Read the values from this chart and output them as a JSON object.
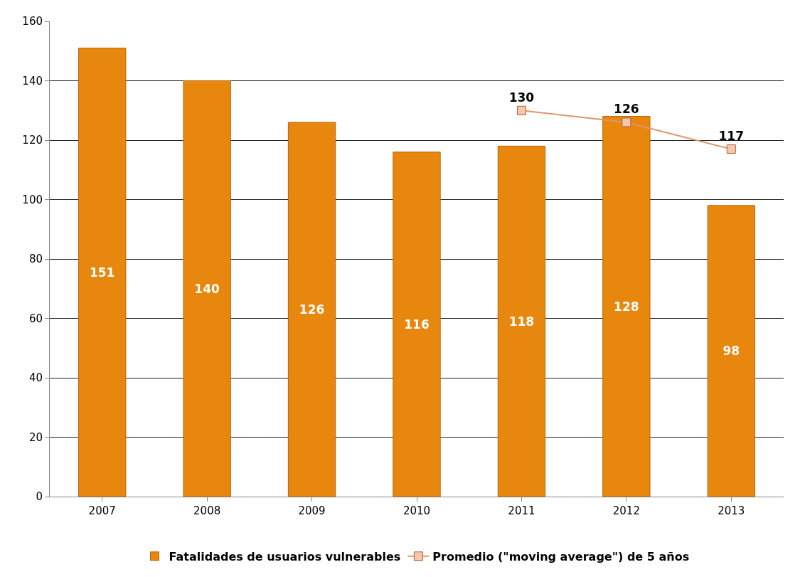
{
  "chart_data": {
    "type": "bar",
    "categories": [
      "2007",
      "2008",
      "2009",
      "2010",
      "2011",
      "2012",
      "2013"
    ],
    "series": [
      {
        "name": "Fatalidades de usuarios vulnerables",
        "color": "#e8870e",
        "values": [
          151,
          140,
          126,
          116,
          118,
          128,
          98
        ]
      },
      {
        "name": "Promedio (\"moving average\") de 5 años",
        "type": "line",
        "color": "#e0966a",
        "marker": "square",
        "line_style": "solid",
        "values": [
          null,
          null,
          null,
          null,
          130,
          126,
          117
        ]
      }
    ],
    "ylim": [
      0,
      160
    ],
    "yticks": [
      0,
      20,
      40,
      60,
      80,
      100,
      120,
      140,
      160
    ],
    "grid": "y",
    "legend": "bottom",
    "data_labels": true
  }
}
